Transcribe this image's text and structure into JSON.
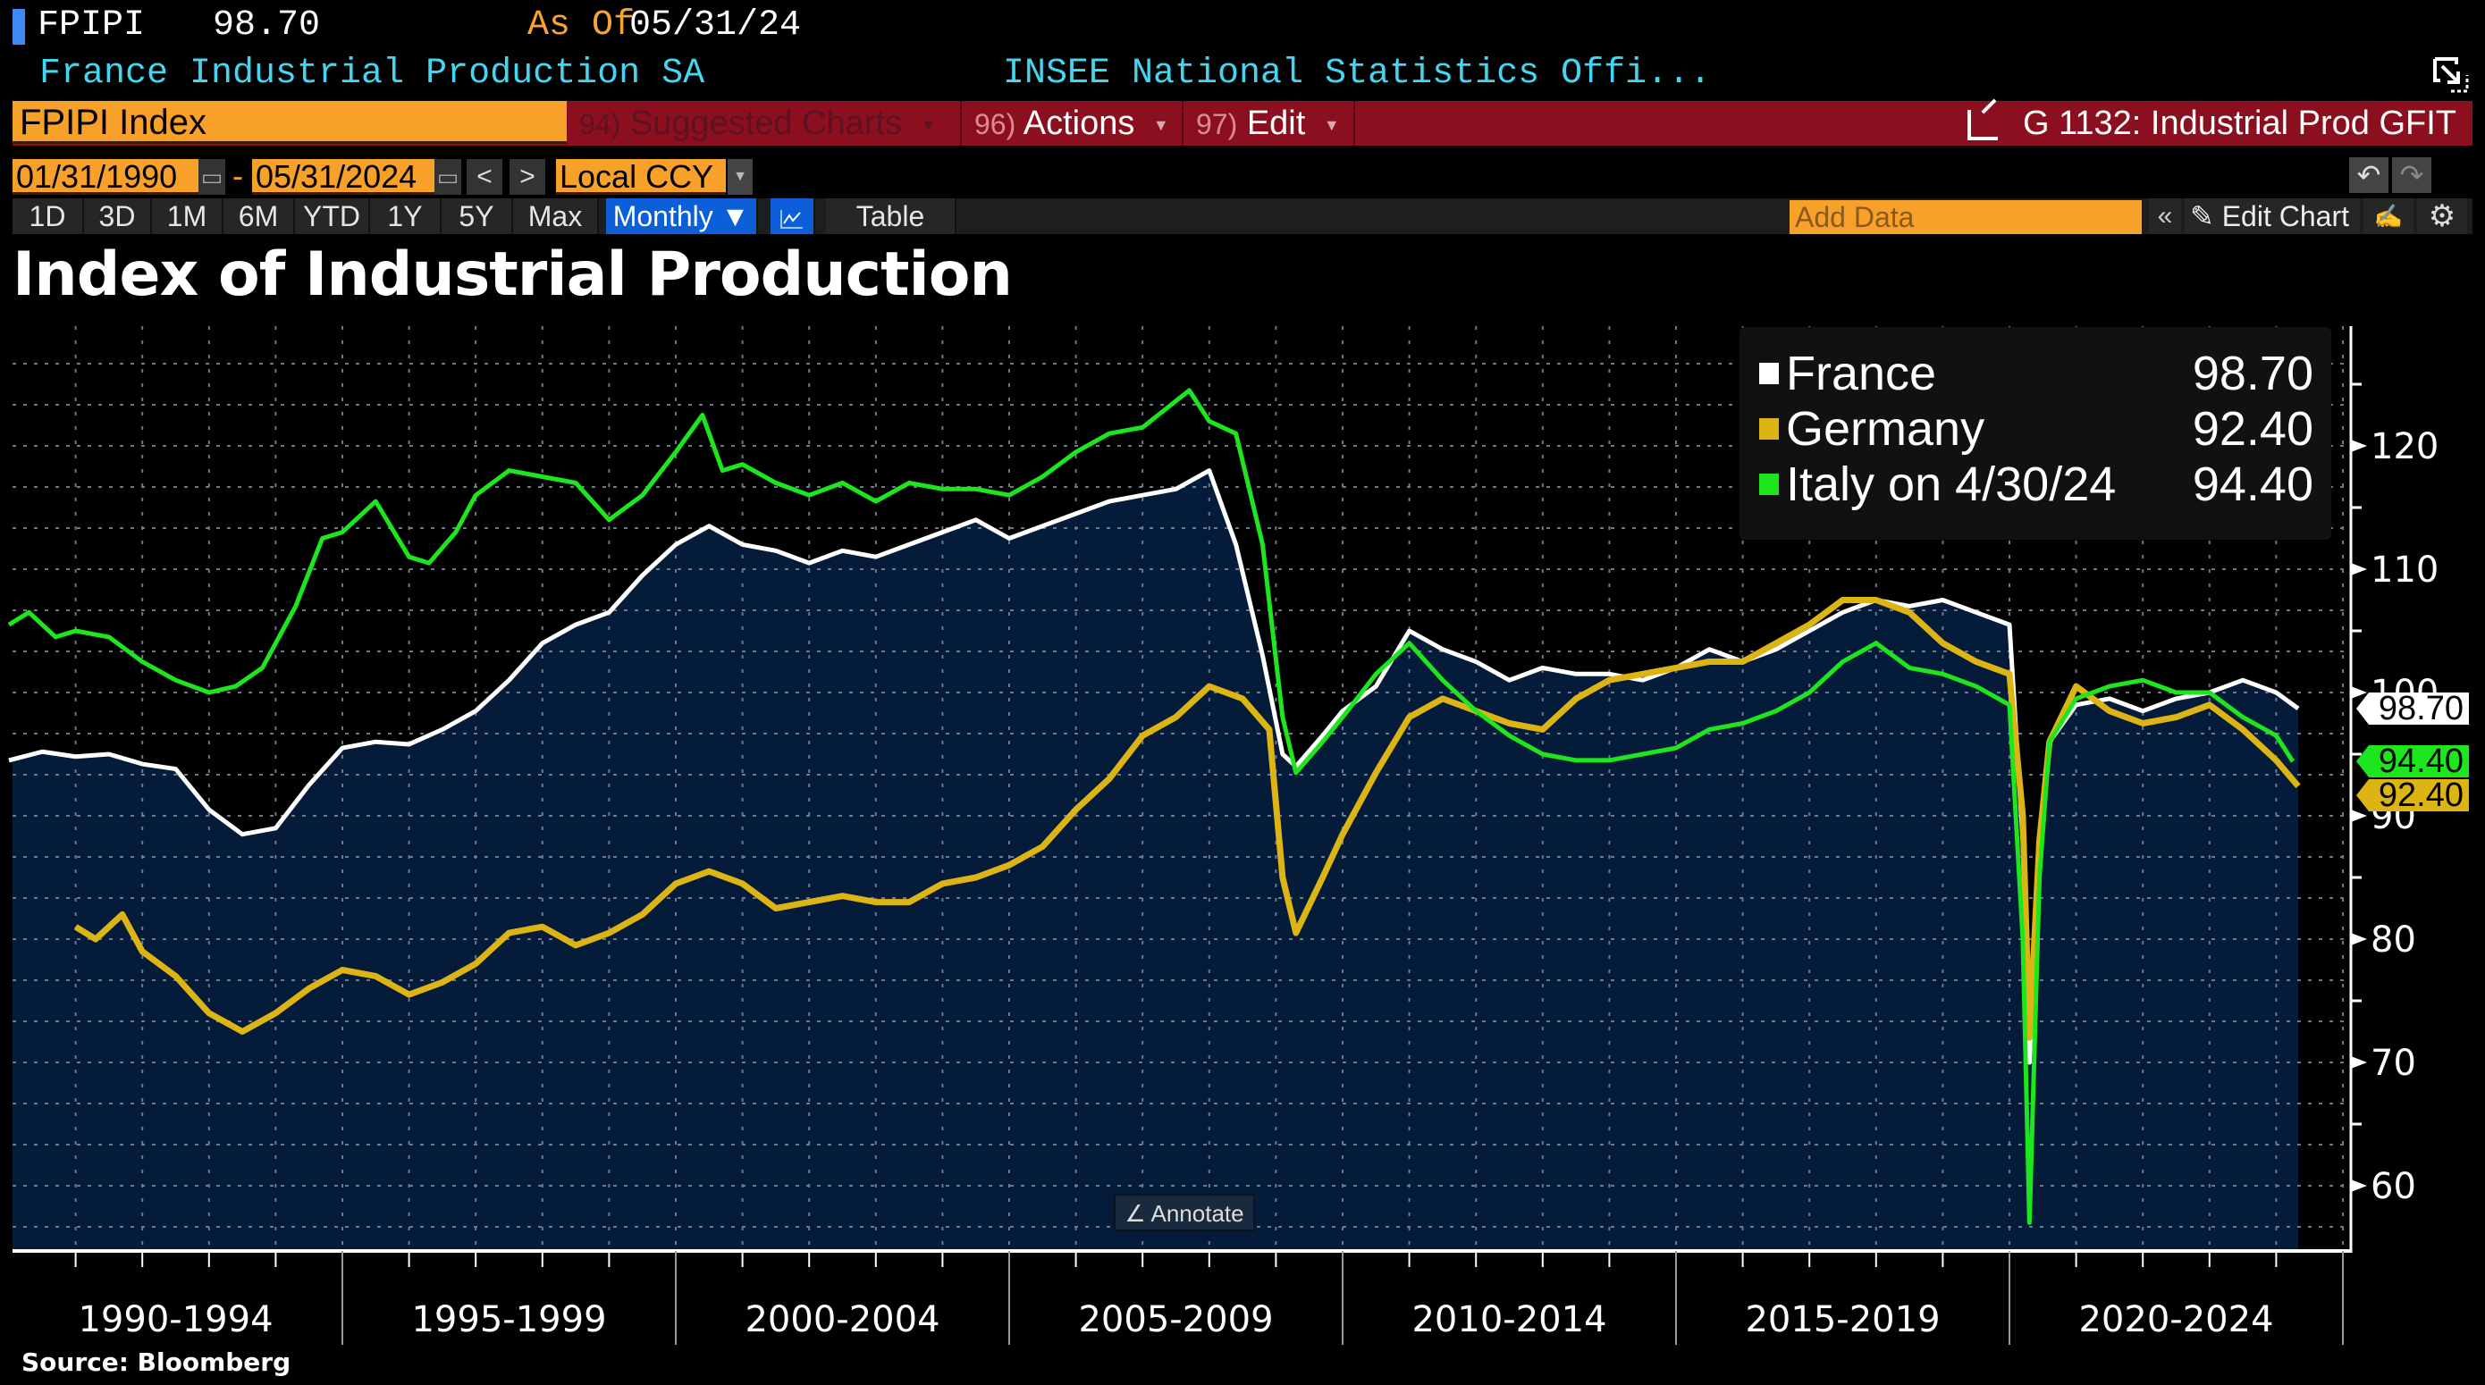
{
  "header": {
    "ticker": "FPIPI",
    "last_value": "98.70",
    "as_of_label": "As Of",
    "as_of_date": "05/31/24",
    "description": "France Industrial Production SA",
    "source_name": "INSEE National Statistics Offi..."
  },
  "menubar": {
    "security": "FPIPI Index",
    "suggested": {
      "num": "94)",
      "label": "Suggested Charts"
    },
    "actions": {
      "num": "96)",
      "label": "Actions"
    },
    "edit": {
      "num": "97)",
      "label": "Edit"
    },
    "related": "G 1132: Industrial Prod GFIT"
  },
  "daterow": {
    "start": "01/31/1990",
    "end": "05/31/2024",
    "dash": "-",
    "currency": "Local CCY",
    "prev": "<",
    "next": ">"
  },
  "tabs": {
    "periods": [
      "1D",
      "3D",
      "1M",
      "6M",
      "YTD",
      "1Y",
      "5Y",
      "Max"
    ],
    "frequency": "Monthly ▼",
    "table": "Table",
    "add_data_placeholder": "Add Data",
    "edit_chart": "Edit Chart",
    "collapse": "«"
  },
  "annotate_label": "Annotate",
  "source": "Source: Bloomberg",
  "colors": {
    "france": "#ffffff",
    "germany": "#dcb514",
    "italy": "#1ee61e",
    "fill": "#041c3a",
    "accent_orange": "#f7a12b",
    "menubar_red": "#8b0f1f",
    "active_tab": "#0b5fd8"
  },
  "chart_data": {
    "type": "line",
    "title": "Index of Industrial Production",
    "xlabel": "",
    "ylabel": "",
    "xlim": [
      1990.0,
      2024.42
    ],
    "ylim": [
      55,
      130
    ],
    "yticks": [
      60,
      70,
      80,
      90,
      100,
      110,
      120
    ],
    "xtick_labels": [
      "1990-1994",
      "1995-1999",
      "2000-2004",
      "2005-2009",
      "2010-2014",
      "2015-2019",
      "2020-2024"
    ],
    "grid": true,
    "legend_position": "top-right",
    "legend": [
      {
        "name": "France",
        "value": "98.70"
      },
      {
        "name": "Germany",
        "value": "92.40"
      },
      {
        "name": "Italy on 4/30/24",
        "value": "94.40"
      }
    ],
    "last_value_tags": [
      {
        "series": "France",
        "value": "98.70"
      },
      {
        "series": "Italy",
        "value": "94.40"
      },
      {
        "series": "Germany",
        "value": "92.40"
      }
    ],
    "series": [
      {
        "name": "France",
        "filled": true,
        "x": [
          1990.0,
          1990.5,
          1991.0,
          1991.5,
          1992.0,
          1992.5,
          1993.0,
          1993.5,
          1994.0,
          1994.5,
          1995.0,
          1995.5,
          1996.0,
          1996.5,
          1997.0,
          1997.5,
          1998.0,
          1998.5,
          1999.0,
          1999.5,
          2000.0,
          2000.5,
          2001.0,
          2001.5,
          2002.0,
          2002.5,
          2003.0,
          2003.5,
          2004.0,
          2004.5,
          2005.0,
          2005.5,
          2006.0,
          2006.5,
          2007.0,
          2007.5,
          2008.0,
          2008.4,
          2008.8,
          2009.1,
          2009.3,
          2009.7,
          2010.0,
          2010.5,
          2011.0,
          2011.5,
          2012.0,
          2012.5,
          2013.0,
          2013.5,
          2014.0,
          2014.5,
          2015.0,
          2015.5,
          2016.0,
          2016.5,
          2017.0,
          2017.5,
          2018.0,
          2018.5,
          2019.0,
          2019.5,
          2020.0,
          2020.2,
          2020.3,
          2020.45,
          2020.6,
          2021.0,
          2021.5,
          2022.0,
          2022.5,
          2023.0,
          2023.5,
          2024.0,
          2024.33
        ],
        "y": [
          94.5,
          95.2,
          94.8,
          95.0,
          94.2,
          93.8,
          90.5,
          88.5,
          89.0,
          92.5,
          95.5,
          96.0,
          95.8,
          97.0,
          98.5,
          101.0,
          104.0,
          105.5,
          106.5,
          109.5,
          112.0,
          113.5,
          112.0,
          111.5,
          110.5,
          111.5,
          111.0,
          112.0,
          113.0,
          114.0,
          112.5,
          113.5,
          114.5,
          115.5,
          116.0,
          116.5,
          118.0,
          112.0,
          103.0,
          95.0,
          94.0,
          96.5,
          98.5,
          100.5,
          105.0,
          103.5,
          102.5,
          101.0,
          102.0,
          101.5,
          101.5,
          101.0,
          102.0,
          103.5,
          102.5,
          103.5,
          105.0,
          106.5,
          107.5,
          107.0,
          107.5,
          106.5,
          105.5,
          88.0,
          70.0,
          88.0,
          96.0,
          99.0,
          99.5,
          98.5,
          99.5,
          100.0,
          101.0,
          100.0,
          98.7
        ]
      },
      {
        "name": "Germany",
        "filled": false,
        "x": [
          1991.0,
          1991.3,
          1991.7,
          1992.0,
          1992.5,
          1993.0,
          1993.5,
          1994.0,
          1994.5,
          1995.0,
          1995.5,
          1996.0,
          1996.5,
          1997.0,
          1997.5,
          1998.0,
          1998.5,
          1999.0,
          1999.5,
          2000.0,
          2000.5,
          2001.0,
          2001.5,
          2002.0,
          2002.5,
          2003.0,
          2003.5,
          2004.0,
          2004.5,
          2005.0,
          2005.5,
          2006.0,
          2006.5,
          2007.0,
          2007.5,
          2008.0,
          2008.5,
          2008.9,
          2009.1,
          2009.3,
          2009.7,
          2010.0,
          2010.5,
          2011.0,
          2011.5,
          2012.0,
          2012.5,
          2013.0,
          2013.5,
          2014.0,
          2014.5,
          2015.0,
          2015.5,
          2016.0,
          2016.5,
          2017.0,
          2017.5,
          2018.0,
          2018.5,
          2019.0,
          2019.5,
          2020.0,
          2020.2,
          2020.3,
          2020.45,
          2020.6,
          2021.0,
          2021.5,
          2022.0,
          2022.5,
          2023.0,
          2023.5,
          2024.0,
          2024.33
        ],
        "y": [
          81.0,
          80.0,
          82.0,
          79.0,
          77.0,
          74.0,
          72.5,
          74.0,
          76.0,
          77.5,
          77.0,
          75.5,
          76.5,
          78.0,
          80.5,
          81.0,
          79.5,
          80.5,
          82.0,
          84.5,
          85.5,
          84.5,
          82.5,
          83.0,
          83.5,
          83.0,
          83.0,
          84.5,
          85.0,
          86.0,
          87.5,
          90.5,
          93.0,
          96.5,
          98.0,
          100.5,
          99.5,
          97.0,
          85.0,
          80.5,
          85.0,
          88.5,
          93.5,
          98.0,
          99.5,
          98.5,
          97.5,
          97.0,
          99.5,
          101.0,
          101.5,
          102.0,
          102.5,
          102.5,
          104.0,
          105.5,
          107.5,
          107.5,
          106.5,
          104.0,
          102.5,
          101.5,
          90.0,
          72.0,
          88.0,
          96.0,
          100.5,
          98.5,
          97.5,
          98.0,
          99.0,
          97.0,
          94.5,
          92.4
        ]
      },
      {
        "name": "Italy",
        "filled": false,
        "x": [
          1990.0,
          1990.3,
          1990.7,
          1991.0,
          1991.5,
          1992.0,
          1992.5,
          1993.0,
          1993.4,
          1993.8,
          1994.3,
          1994.7,
          1995.0,
          1995.5,
          1996.0,
          1996.3,
          1996.7,
          1997.0,
          1997.5,
          1998.0,
          1998.5,
          1999.0,
          1999.5,
          2000.0,
          2000.4,
          2000.7,
          2001.0,
          2001.5,
          2002.0,
          2002.5,
          2003.0,
          2003.5,
          2004.0,
          2004.5,
          2005.0,
          2005.5,
          2006.0,
          2006.5,
          2007.0,
          2007.7,
          2008.0,
          2008.4,
          2008.8,
          2009.1,
          2009.3,
          2009.7,
          2010.0,
          2010.5,
          2011.0,
          2011.5,
          2012.0,
          2012.5,
          2013.0,
          2013.5,
          2014.0,
          2014.5,
          2015.0,
          2015.5,
          2016.0,
          2016.5,
          2017.0,
          2017.5,
          2018.0,
          2018.5,
          2019.0,
          2019.5,
          2020.0,
          2020.2,
          2020.3,
          2020.45,
          2020.6,
          2021.0,
          2021.5,
          2022.0,
          2022.5,
          2023.0,
          2023.5,
          2024.0,
          2024.25
        ],
        "y": [
          105.5,
          106.5,
          104.5,
          105.0,
          104.5,
          102.5,
          101.0,
          100.0,
          100.5,
          102.0,
          107.0,
          112.5,
          113.0,
          115.5,
          111.0,
          110.5,
          113.0,
          116.0,
          118.0,
          117.5,
          117.0,
          114.0,
          116.0,
          119.5,
          122.5,
          118.0,
          118.5,
          117.0,
          116.0,
          117.0,
          115.5,
          117.0,
          116.5,
          116.5,
          116.0,
          117.5,
          119.5,
          121.0,
          121.5,
          124.5,
          122.0,
          121.0,
          112.0,
          98.0,
          93.5,
          96.0,
          98.0,
          101.5,
          104.0,
          101.0,
          98.5,
          96.5,
          95.0,
          94.5,
          94.5,
          95.0,
          95.5,
          97.0,
          97.5,
          98.5,
          100.0,
          102.5,
          104.0,
          102.0,
          101.5,
          100.5,
          99.0,
          80.0,
          57.0,
          85.0,
          96.0,
          99.5,
          100.5,
          101.0,
          100.0,
          100.0,
          98.0,
          96.5,
          94.4
        ]
      }
    ]
  }
}
